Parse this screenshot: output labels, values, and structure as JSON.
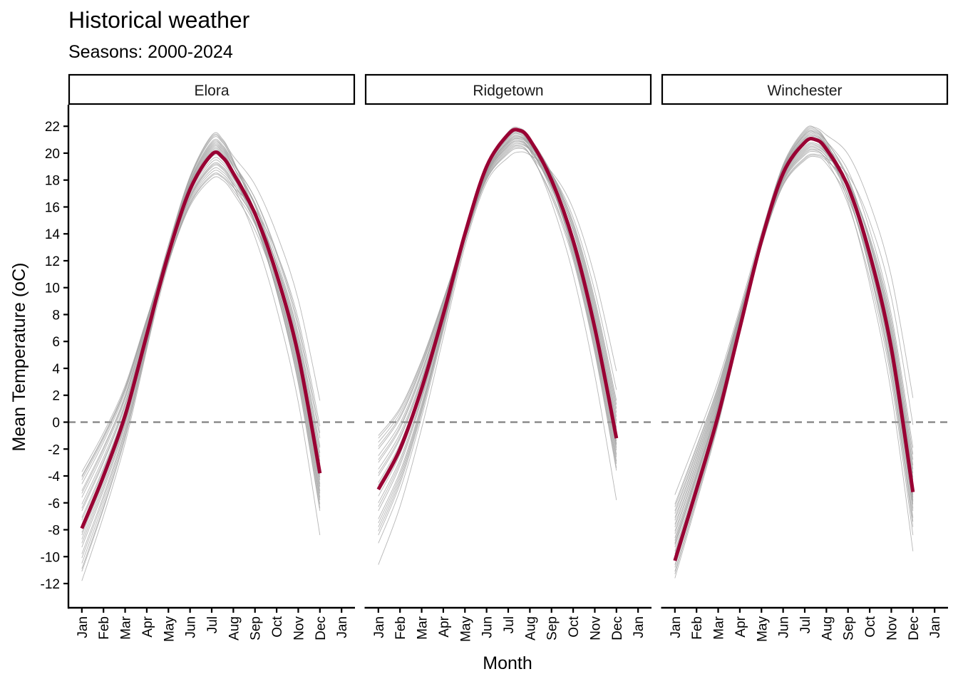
{
  "chart_data": {
    "type": "line",
    "title": "Historical weather",
    "subtitle": "Seasons: 2000-2024",
    "xlabel": "Month",
    "ylabel": "Mean Temperature (oC)",
    "ylim": [
      -13.8,
      23.6
    ],
    "yticks": [
      -12,
      -10,
      -8,
      -6,
      -4,
      -2,
      0,
      2,
      4,
      6,
      8,
      10,
      12,
      14,
      16,
      18,
      20,
      22
    ],
    "ytick_labels": [
      "-12",
      "-10",
      "-8",
      "-6",
      "-4",
      "-2",
      "0",
      "2",
      "4",
      "6",
      "8",
      "10",
      "12",
      "14",
      "16",
      "18",
      "20",
      "22"
    ],
    "x_unit": "month index (0 = Jan 1, 12 = next Jan 1)",
    "xlim": [
      -0.62,
      12.62
    ],
    "xticks": [
      0,
      1,
      2,
      3,
      4,
      5,
      6,
      7,
      8,
      9,
      10,
      11,
      12
    ],
    "xtick_labels": [
      "Jan",
      "Feb",
      "Mar",
      "Apr",
      "May",
      "Jun",
      "Jul",
      "Aug",
      "Sep",
      "Oct",
      "Nov",
      "Dec",
      "Jan"
    ],
    "reference_line": {
      "y": 0,
      "style": "dashed",
      "color": "#808080"
    },
    "grid": false,
    "colors": {
      "mean": "#990033",
      "season": "#9e9e9e",
      "axis": "#000000"
    },
    "mean_x": [
      0,
      1,
      2,
      3,
      4,
      5,
      6,
      6.5,
      7,
      8,
      9,
      10,
      11
    ],
    "panels": [
      {
        "name": "Elora",
        "mean": [
          -7.9,
          -4.0,
          0.5,
          6.5,
          12.5,
          17.3,
          19.9,
          19.7,
          18.5,
          15.5,
          11.0,
          5.0,
          -3.8
        ],
        "season_offsets_start": [
          -3.9,
          -3.2,
          -2.6,
          -1.9,
          -1.4,
          -0.8,
          -0.3,
          0.3,
          0.8,
          1.3,
          1.8,
          2.3,
          2.8,
          3.3,
          3.8,
          4.2,
          -2.2,
          -1.1,
          0.6,
          1.5,
          2.6,
          3.6,
          -3.0,
          -0.5,
          3.9
        ],
        "season_offsets_peak": [
          1.4,
          -1.6,
          0.9,
          -1.2,
          0.6,
          -0.8,
          1.2,
          -0.4,
          0.3,
          -1.9,
          0.8,
          -0.2,
          1.5,
          -1.0,
          0.5,
          -0.6,
          1.0,
          -1.4,
          0.2,
          -0.9,
          1.3,
          -0.1,
          0.7,
          -1.7,
          0.4
        ],
        "season_offsets_end": [
          5.4,
          3.5,
          2.6,
          1.9,
          1.2,
          0.7,
          0.2,
          -0.3,
          -0.8,
          -1.3,
          -1.8,
          -2.3,
          -2.8,
          -4.6,
          2.0,
          1.5,
          0.9,
          0.4,
          -0.5,
          -1.0,
          -1.5,
          -2.0,
          3.0,
          -0.1,
          -2.6
        ]
      },
      {
        "name": "Ridgetown",
        "mean": [
          -5.0,
          -2.0,
          2.5,
          8.0,
          14.0,
          19.0,
          21.4,
          21.7,
          21.0,
          18.0,
          13.5,
          7.0,
          -1.2
        ],
        "season_offsets_start": [
          -5.6,
          -4.0,
          -3.4,
          -2.8,
          -2.2,
          -1.6,
          -1.0,
          -0.5,
          0.0,
          0.5,
          1.0,
          1.5,
          2.0,
          2.5,
          3.0,
          3.5,
          4.0,
          -3.1,
          -1.3,
          0.3,
          1.2,
          2.2,
          3.2,
          3.8,
          -2.5
        ],
        "season_offsets_peak": [
          -1.8,
          -1.2,
          -0.6,
          -0.2,
          0.1,
          -1.5,
          -0.9,
          -0.4,
          -1.0,
          -0.7,
          -0.3,
          0.2,
          -1.3,
          -0.8,
          -0.5,
          -0.1,
          -1.1,
          -0.6,
          -0.2,
          -0.9,
          0.0,
          -1.4,
          -0.5,
          -0.7,
          -0.3
        ],
        "season_offsets_end": [
          5.0,
          3.6,
          2.8,
          2.2,
          1.6,
          1.1,
          0.6,
          0.1,
          -0.4,
          -0.9,
          -1.4,
          -1.9,
          -2.4,
          -4.6,
          1.9,
          1.3,
          0.8,
          0.3,
          -0.2,
          -0.7,
          -1.2,
          -1.7,
          -2.2,
          2.5,
          -0.5
        ]
      },
      {
        "name": "Winchester",
        "mean": [
          -10.3,
          -5.0,
          0.5,
          7.0,
          13.5,
          18.5,
          20.8,
          21.0,
          20.3,
          17.5,
          12.5,
          5.5,
          -5.2
        ],
        "season_offsets_start": [
          -1.3,
          -0.8,
          -0.3,
          0.2,
          0.7,
          1.2,
          1.7,
          2.2,
          2.7,
          3.2,
          3.7,
          4.2,
          4.9,
          0.5,
          1.0,
          1.5,
          2.0,
          2.5,
          3.0,
          -0.5,
          0.0,
          3.5,
          4.0,
          1.3,
          -1.0
        ],
        "season_offsets_peak": [
          1.0,
          -1.2,
          0.6,
          -0.8,
          0.3,
          -0.5,
          0.8,
          -0.3,
          0.1,
          -1.4,
          0.5,
          -0.1,
          0.9,
          -0.9,
          0.4,
          -0.6,
          0.7,
          -1.0,
          0.2,
          -0.4,
          0.6,
          -0.7,
          0.0,
          -1.3,
          0.3
        ],
        "season_offsets_end": [
          7.0,
          5.0,
          3.3,
          2.4,
          1.7,
          1.1,
          0.6,
          0.1,
          -0.4,
          -0.9,
          -1.4,
          -1.9,
          -2.6,
          -3.2,
          -4.4,
          2.0,
          1.4,
          0.9,
          0.3,
          -0.2,
          -0.7,
          -1.2,
          -2.2,
          2.8,
          -0.6
        ]
      }
    ]
  }
}
